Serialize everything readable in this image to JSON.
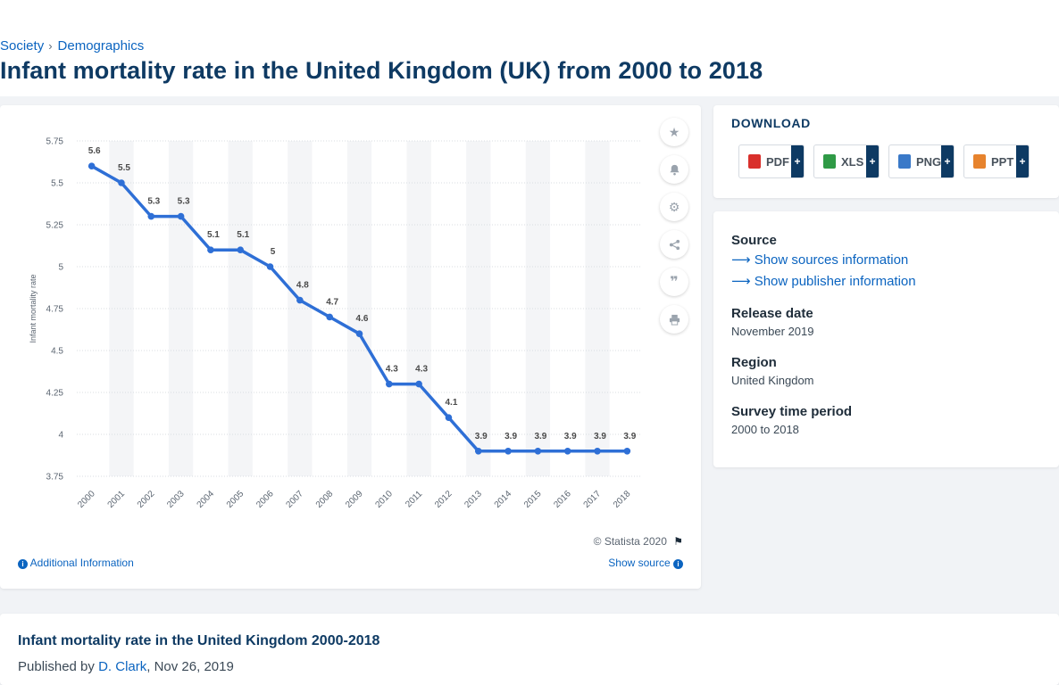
{
  "breadcrumb": {
    "items": [
      "Society",
      "Demographics"
    ],
    "separator": "›"
  },
  "page_title": "Infant mortality rate in the United Kingdom (UK) from 2000 to 2018",
  "chart_data": {
    "type": "line",
    "title": "",
    "xlabel": "",
    "ylabel": "Infant mortality rate",
    "categories": [
      "2000",
      "2001",
      "2002",
      "2003",
      "2004",
      "2005",
      "2006",
      "2007",
      "2008",
      "2009",
      "2010",
      "2011",
      "2012",
      "2013",
      "2014",
      "2015",
      "2016",
      "2017",
      "2018"
    ],
    "series": [
      {
        "values": [
          5.6,
          5.5,
          5.3,
          5.3,
          5.1,
          5.1,
          5,
          4.8,
          4.7,
          4.6,
          4.3,
          4.3,
          4.1,
          3.9,
          3.9,
          3.9,
          3.9,
          3.9,
          3.9
        ]
      }
    ],
    "ylim": [
      3.75,
      5.75
    ],
    "y_ticks": [
      "5.75",
      "5.5",
      "5.25",
      "5",
      "4.75",
      "4.5",
      "4.25",
      "4",
      "3.75"
    ],
    "grid": true,
    "line_color": "#2e6fd6",
    "data_labels": true
  },
  "chart_footer": {
    "credit": "© Statista 2020",
    "flag_icon": "flag-icon",
    "additional_info": "Additional Information",
    "show_source": "Show source"
  },
  "tools": [
    "star-icon",
    "bell-icon",
    "gear-icon",
    "share-icon",
    "quote-icon",
    "print-icon"
  ],
  "download": {
    "title": "DOWNLOAD",
    "buttons": [
      {
        "label": "PDF",
        "icon": "pdf-file-icon"
      },
      {
        "label": "XLS",
        "icon": "xls-file-icon"
      },
      {
        "label": "PNG",
        "icon": "png-file-icon"
      },
      {
        "label": "PPT",
        "icon": "ppt-file-icon"
      }
    ],
    "plus": "+"
  },
  "info": {
    "source_label": "Source",
    "show_sources": "Show sources information",
    "show_publisher": "Show publisher information",
    "release_label": "Release date",
    "release_value": "November 2019",
    "region_label": "Region",
    "region_value": "United Kingdom",
    "survey_label": "Survey time period",
    "survey_value": "2000 to 2018"
  },
  "bottom": {
    "title": "Infant mortality rate in the United Kingdom 2000-2018",
    "published_by": "Published by",
    "author": "D. Clark",
    "date": ", Nov 26, 2019"
  },
  "colors": {
    "accent": "#0b64c0",
    "title": "#0e3a63",
    "series": "#2e6fd6"
  }
}
